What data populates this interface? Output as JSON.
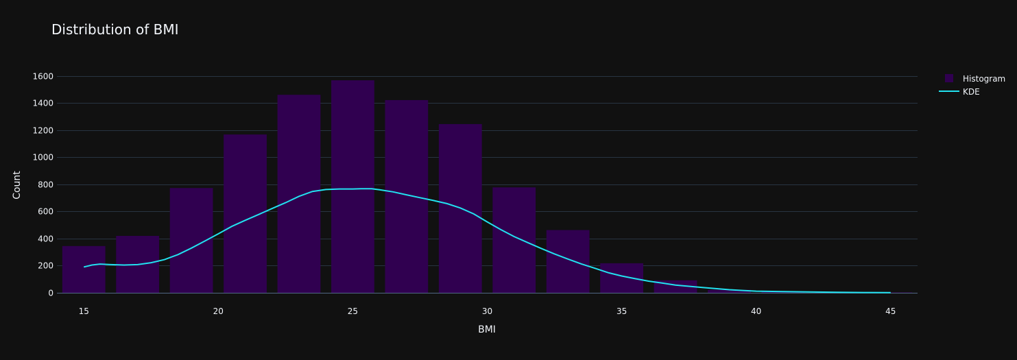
{
  "chart_data": {
    "type": "bar",
    "title": "Distribution of BMI",
    "xlabel": "BMI",
    "ylabel": "Count",
    "xlim": [
      14,
      46
    ],
    "ylim": [
      0,
      1700
    ],
    "xticks": [
      15,
      20,
      25,
      30,
      35,
      40,
      45
    ],
    "yticks": [
      0,
      200,
      400,
      600,
      800,
      1000,
      1200,
      1400,
      1600
    ],
    "grid": true,
    "legend_position": "top-right",
    "bins": {
      "start": 14,
      "size": 2,
      "values": [
        345,
        420,
        773,
        1168,
        1461,
        1568,
        1422,
        1245,
        778,
        463,
        218,
        92,
        22,
        10,
        6,
        3
      ]
    },
    "series": [
      {
        "name": "Histogram",
        "type": "bar",
        "color": "#300050",
        "x": [
          15,
          17,
          19,
          21,
          23,
          25,
          27,
          29,
          31,
          33,
          35,
          37,
          39,
          41,
          43,
          45
        ],
        "values": [
          345,
          420,
          773,
          1168,
          1461,
          1568,
          1422,
          1245,
          778,
          463,
          218,
          92,
          22,
          10,
          6,
          3
        ]
      },
      {
        "name": "KDE",
        "type": "line",
        "color": "#22e2f0",
        "x": [
          15,
          15.3,
          15.6,
          16,
          16.5,
          17,
          17.5,
          18,
          18.5,
          19,
          19.5,
          20,
          20.5,
          21,
          21.5,
          22,
          22.5,
          23,
          23.5,
          24,
          24.5,
          25,
          25.3,
          25.7,
          26,
          26.5,
          27,
          27.5,
          28,
          28.5,
          29,
          29.5,
          30,
          30.5,
          31,
          31.5,
          32,
          32.5,
          33,
          33.5,
          34,
          34.5,
          35,
          35.5,
          36,
          36.5,
          37,
          37.5,
          38,
          38.5,
          39,
          39.5,
          40,
          41,
          42,
          43,
          44,
          45
        ],
        "values": [
          190,
          205,
          212,
          208,
          205,
          208,
          222,
          245,
          282,
          330,
          382,
          435,
          490,
          535,
          578,
          622,
          665,
          712,
          748,
          762,
          766,
          766,
          768,
          768,
          760,
          745,
          723,
          702,
          681,
          658,
          626,
          582,
          523,
          467,
          415,
          371,
          328,
          287,
          249,
          213,
          181,
          148,
          124,
          104,
          86,
          72,
          57,
          48,
          39,
          31,
          23,
          17,
          12,
          9,
          6,
          4,
          2,
          1
        ]
      }
    ]
  }
}
